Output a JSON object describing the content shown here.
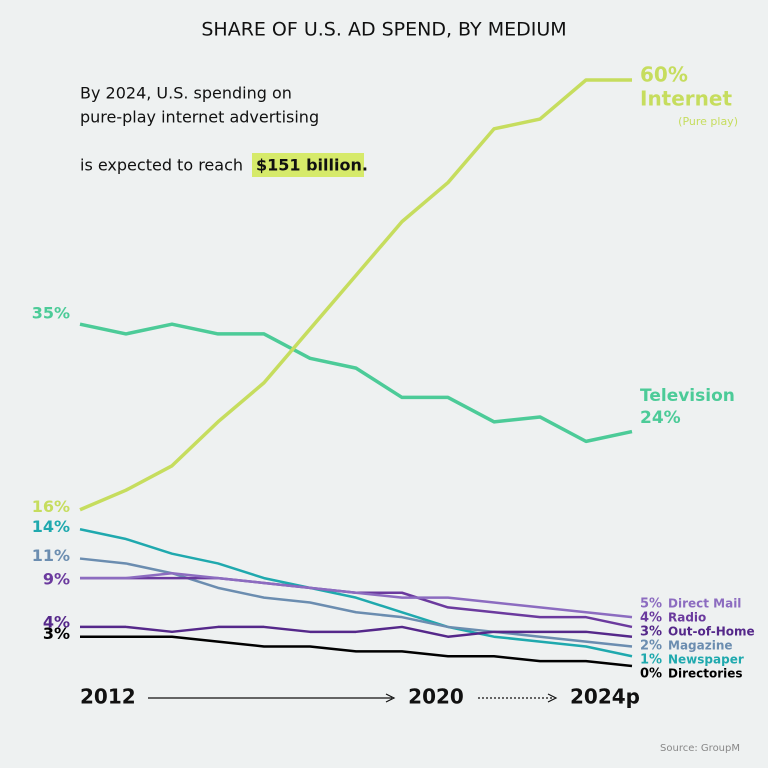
{
  "chart_data": {
    "type": "line",
    "title": "SHARE OF U.S. AD SPEND, BY MEDIUM",
    "annotation": {
      "lines": [
        "By 2024, U.S. spending on",
        "pure-play internet advertising",
        "is expected to reach"
      ],
      "highlight": "$151 billion."
    },
    "categories": [
      "2012",
      null,
      null,
      null,
      null,
      null,
      null,
      null,
      "2020",
      null,
      null,
      null,
      "2024p"
    ],
    "ylim": [
      0,
      60
    ],
    "series": [
      {
        "name": "Internet",
        "note": "(Pure play)",
        "color": "#c6dd5e",
        "values": [
          16,
          18,
          20.5,
          25,
          29,
          34.5,
          40,
          45.5,
          49.5,
          55,
          56,
          60,
          60
        ],
        "value_labels": [
          "16%",
          null,
          null,
          null,
          null,
          null,
          null,
          null,
          null,
          null,
          null,
          null,
          "60%"
        ]
      },
      {
        "name": "Television",
        "color": "#4ccb98",
        "values": [
          35,
          34,
          35,
          34,
          34,
          31.5,
          30.5,
          27.5,
          27.5,
          25,
          25.5,
          23,
          24
        ],
        "value_labels": [
          "35%",
          null,
          null,
          null,
          null,
          null,
          null,
          null,
          null,
          null,
          null,
          null,
          "24%"
        ]
      },
      {
        "name": "Direct Mail",
        "color": "#8c6cc0",
        "values": [
          9,
          9,
          9.5,
          9,
          8.5,
          8,
          7.5,
          7,
          7,
          6.5,
          6,
          5.5,
          5
        ],
        "value_labels": [
          null,
          null,
          null,
          null,
          null,
          null,
          null,
          null,
          null,
          null,
          null,
          null,
          "5%"
        ]
      },
      {
        "name": "Radio",
        "color": "#6b3a9e",
        "values": [
          9,
          9,
          9,
          9,
          8.5,
          8,
          7.5,
          7.5,
          6,
          5.5,
          5,
          5,
          4
        ],
        "value_labels": [
          "9%",
          null,
          null,
          null,
          null,
          null,
          null,
          null,
          null,
          null,
          null,
          null,
          "4%"
        ]
      },
      {
        "name": "Out-of-Home",
        "color": "#55288a",
        "values": [
          4,
          4,
          3.5,
          4,
          4,
          3.5,
          3.5,
          4,
          3,
          3.5,
          3.5,
          3.5,
          3
        ],
        "value_labels": [
          "4%",
          null,
          null,
          null,
          null,
          null,
          null,
          null,
          null,
          null,
          null,
          null,
          "3%"
        ]
      },
      {
        "name": "Magazine",
        "color": "#6b8db0",
        "values": [
          11,
          10.5,
          9.5,
          8,
          7,
          6.5,
          5.5,
          5,
          4,
          3.5,
          3,
          2.5,
          2
        ],
        "value_labels": [
          "11%",
          null,
          null,
          null,
          null,
          null,
          null,
          null,
          null,
          null,
          null,
          null,
          "2%"
        ]
      },
      {
        "name": "Newspaper",
        "color": "#1fa9ae",
        "values": [
          14,
          13,
          11.5,
          10.5,
          9,
          8,
          7,
          5.5,
          4,
          3,
          2.5,
          2,
          1
        ],
        "value_labels": [
          "14%",
          null,
          null,
          null,
          null,
          null,
          null,
          null,
          null,
          null,
          null,
          null,
          "1%"
        ]
      },
      {
        "name": "Directories",
        "color": "#000000",
        "values": [
          3,
          3,
          3,
          2.5,
          2,
          2,
          1.5,
          1.5,
          1,
          1,
          0.5,
          0.5,
          0
        ],
        "value_labels": [
          "3%",
          null,
          null,
          null,
          null,
          null,
          null,
          null,
          null,
          null,
          null,
          null,
          "0%"
        ]
      }
    ],
    "source": "Source: GroupM"
  }
}
